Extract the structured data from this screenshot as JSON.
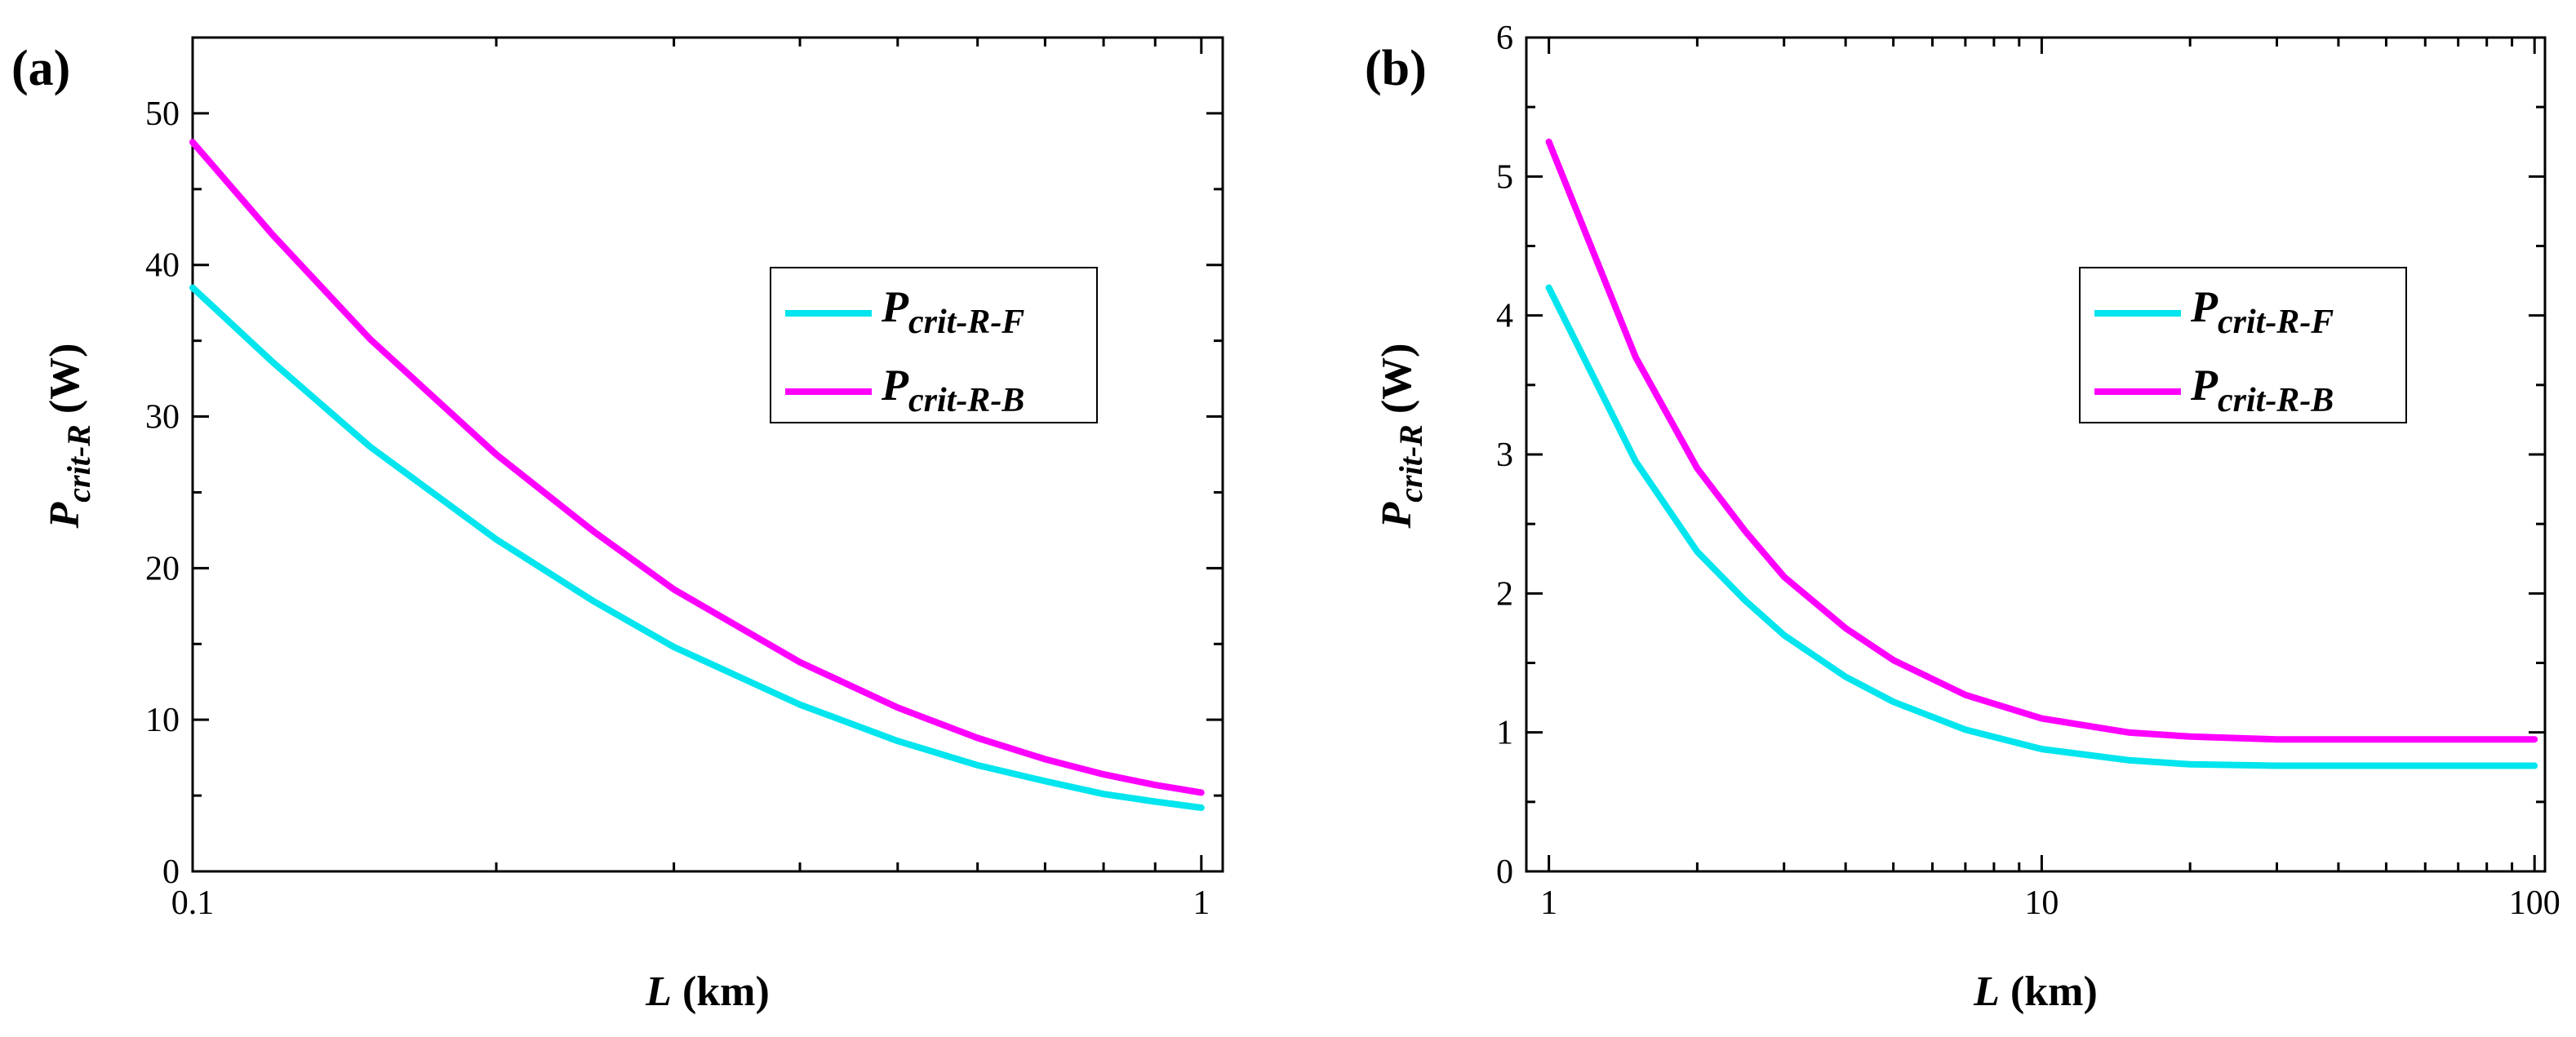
{
  "chart_data": [
    {
      "type": "line",
      "panel_label": "(a)",
      "xlabel_var": "L",
      "xlabel_unit": " (km)",
      "ylabel_var": "P",
      "ylabel_sub": "crit-R",
      "ylabel_unit": " (W)",
      "x_scale": "log",
      "xlim": [
        0.1,
        1.05
      ],
      "ylim": [
        0,
        55
      ],
      "x_ticks": [
        0.1,
        1
      ],
      "x_tick_labels": [
        "0.1",
        "1"
      ],
      "y_ticks": [
        0,
        10,
        20,
        30,
        40,
        50
      ],
      "y_tick_labels": [
        "0",
        "10",
        "20",
        "30",
        "40",
        "50"
      ],
      "grid": false,
      "legend_position": "upper-right",
      "series": [
        {
          "name_main": "P",
          "name_sub": "crit-R-F",
          "color": "#00E5EE",
          "x": [
            0.1,
            0.12,
            0.15,
            0.2,
            0.25,
            0.3,
            0.4,
            0.5,
            0.6,
            0.7,
            0.8,
            0.9,
            1.0
          ],
          "y": [
            38.5,
            33.6,
            28.0,
            21.9,
            17.8,
            14.8,
            11.0,
            8.6,
            7.0,
            5.95,
            5.1,
            4.6,
            4.2
          ]
        },
        {
          "name_main": "P",
          "name_sub": "crit-R-B",
          "color": "#FF00FF",
          "x": [
            0.1,
            0.12,
            0.15,
            0.2,
            0.25,
            0.3,
            0.4,
            0.5,
            0.6,
            0.7,
            0.8,
            0.9,
            1.0
          ],
          "y": [
            48.1,
            42.0,
            35.1,
            27.5,
            22.4,
            18.6,
            13.8,
            10.8,
            8.8,
            7.4,
            6.4,
            5.7,
            5.2
          ]
        }
      ]
    },
    {
      "type": "line",
      "panel_label": "(b)",
      "xlabel_var": "L",
      "xlabel_unit": " (km)",
      "ylabel_var": "P",
      "ylabel_sub": "crit-R",
      "ylabel_unit": " (W)",
      "x_scale": "log",
      "xlim": [
        0.9,
        105
      ],
      "ylim": [
        0,
        6
      ],
      "x_ticks": [
        1,
        10,
        100
      ],
      "x_tick_labels": [
        "1",
        "10",
        "100"
      ],
      "y_ticks": [
        0,
        1,
        2,
        3,
        4,
        5,
        6
      ],
      "y_tick_labels": [
        "0",
        "1",
        "2",
        "3",
        "4",
        "5",
        "6"
      ],
      "grid": false,
      "legend_position": "upper-right",
      "series": [
        {
          "name_main": "P",
          "name_sub": "crit-R-F",
          "color": "#00E5EE",
          "x": [
            1,
            1.5,
            2,
            2.5,
            3,
            4,
            5,
            7,
            10,
            15,
            20,
            30,
            50,
            100
          ],
          "y": [
            4.2,
            2.95,
            2.3,
            1.95,
            1.7,
            1.4,
            1.22,
            1.02,
            0.88,
            0.8,
            0.77,
            0.76,
            0.76,
            0.76
          ]
        },
        {
          "name_main": "P",
          "name_sub": "crit-R-B",
          "color": "#FF00FF",
          "x": [
            1,
            1.5,
            2,
            2.5,
            3,
            4,
            5,
            7,
            10,
            15,
            20,
            30,
            50,
            100
          ],
          "y": [
            5.25,
            3.7,
            2.9,
            2.45,
            2.12,
            1.75,
            1.52,
            1.27,
            1.1,
            1.0,
            0.97,
            0.95,
            0.95,
            0.95
          ]
        }
      ]
    }
  ]
}
